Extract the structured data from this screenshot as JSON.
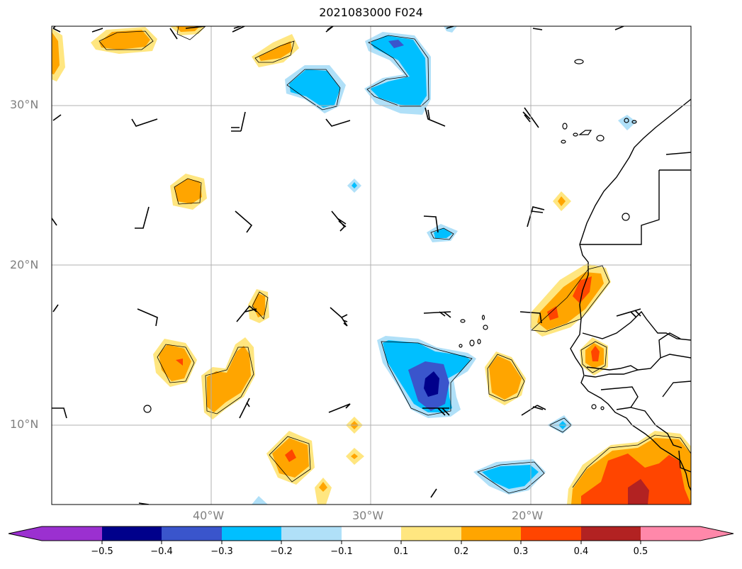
{
  "title": "2021083000 F024",
  "latitude_labels": [
    "30°N",
    "20°N",
    "10°N"
  ],
  "longitude_labels": [
    "40°W",
    "30°W",
    "20°W"
  ],
  "colorbar": {
    "tick_labels": [
      "−0.5",
      "−0.4",
      "−0.3",
      "−0.2",
      "−0.1",
      "0.1",
      "0.2",
      "0.3",
      "0.4",
      "0.5"
    ],
    "colors": [
      "#9b30d0",
      "#00008b",
      "#3a55cc",
      "#00bfff",
      "#b0e0f8",
      "#ffffff",
      "#ffe680",
      "#ffa500",
      "#ff4500",
      "#b22222",
      "#ff88aa"
    ]
  },
  "palette": {
    "grid": "#b0b0b0",
    "coast": "#000000",
    "label": "#808080"
  }
}
